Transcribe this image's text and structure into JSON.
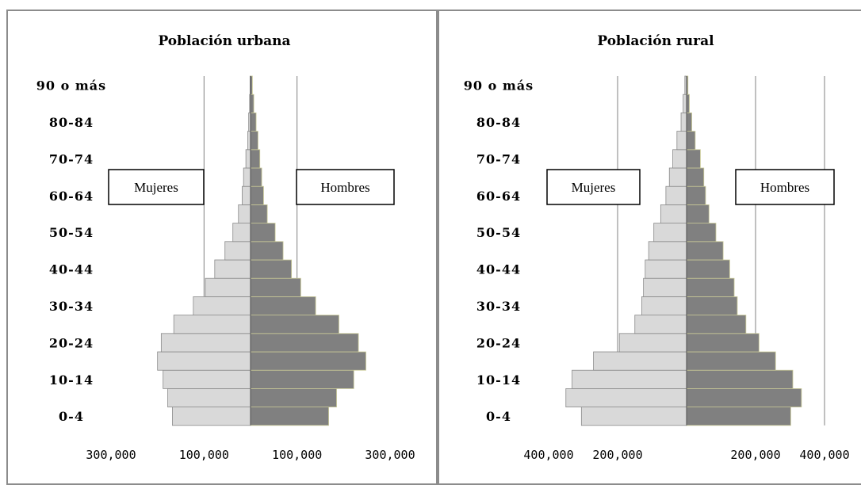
{
  "chart_data": [
    {
      "type": "bar",
      "orientation": "horizontal",
      "title": "Población urbana",
      "categories": [
        "0-4",
        "5-9",
        "10-14",
        "15-19",
        "20-24",
        "25-29",
        "30-34",
        "35-39",
        "40-44",
        "45-49",
        "50-54",
        "55-59",
        "60-64",
        "65-69",
        "70-74",
        "75-79",
        "80-84",
        "85-89",
        "90 o más"
      ],
      "category_labels_shown": [
        "0-4",
        "10-14",
        "20-24",
        "30-34",
        "40-44",
        "50-54",
        "60-64",
        "70-74",
        "80-84",
        "90 o más"
      ],
      "series": [
        {
          "name": "Mujeres",
          "color": "#d9d9d9",
          "values": [
            168000,
            178000,
            188000,
            200000,
            192000,
            165000,
            123000,
            97000,
            77000,
            55000,
            38000,
            26000,
            18000,
            15000,
            10000,
            6000,
            4000,
            2000,
            1000
          ]
        },
        {
          "name": "Hombres",
          "color": "#808080",
          "values": [
            168000,
            185000,
            222000,
            248000,
            232000,
            190000,
            140000,
            108000,
            88000,
            70000,
            53000,
            36000,
            28000,
            24000,
            20000,
            16000,
            12000,
            7000,
            4000
          ]
        }
      ],
      "xlim": [
        -300000,
        300000
      ],
      "xticks": [
        -300000,
        -100000,
        100000,
        300000
      ],
      "xtick_labels": [
        "300,000",
        "100,000",
        "100,000",
        "300,000"
      ],
      "gridlines_x": [
        -100000,
        100000
      ],
      "legend_boxes": [
        "Mujeres",
        "Hombres"
      ]
    },
    {
      "type": "bar",
      "orientation": "horizontal",
      "title": "Población rural",
      "categories": [
        "0-4",
        "5-9",
        "10-14",
        "15-19",
        "20-24",
        "25-29",
        "30-34",
        "35-39",
        "40-44",
        "45-49",
        "50-54",
        "55-59",
        "60-64",
        "65-69",
        "70-74",
        "75-79",
        "80-84",
        "85-89",
        "90 o más"
      ],
      "category_labels_shown": [
        "0-4",
        "10-14",
        "20-24",
        "30-34",
        "40-44",
        "50-54",
        "60-64",
        "70-74",
        "80-84",
        "90 o más"
      ],
      "series": [
        {
          "name": "Mujeres",
          "color": "#d9d9d9",
          "values": [
            305000,
            350000,
            332000,
            270000,
            195000,
            150000,
            130000,
            125000,
            120000,
            110000,
            95000,
            75000,
            60000,
            50000,
            40000,
            28000,
            16000,
            10000,
            5000
          ]
        },
        {
          "name": "Hombres",
          "color": "#808080",
          "values": [
            302000,
            333000,
            308000,
            258000,
            210000,
            172000,
            147000,
            138000,
            125000,
            106000,
            85000,
            65000,
            55000,
            50000,
            40000,
            25000,
            15000,
            8000,
            4000
          ]
        }
      ],
      "xlim": [
        -400000,
        400000
      ],
      "xticks": [
        -400000,
        -200000,
        200000,
        400000
      ],
      "xtick_labels": [
        "400,000",
        "200,000",
        "200,000",
        "400,000"
      ],
      "gridlines_x": [
        -200000,
        200000,
        400000
      ],
      "legend_boxes": [
        "Mujeres",
        "Hombres"
      ]
    }
  ]
}
